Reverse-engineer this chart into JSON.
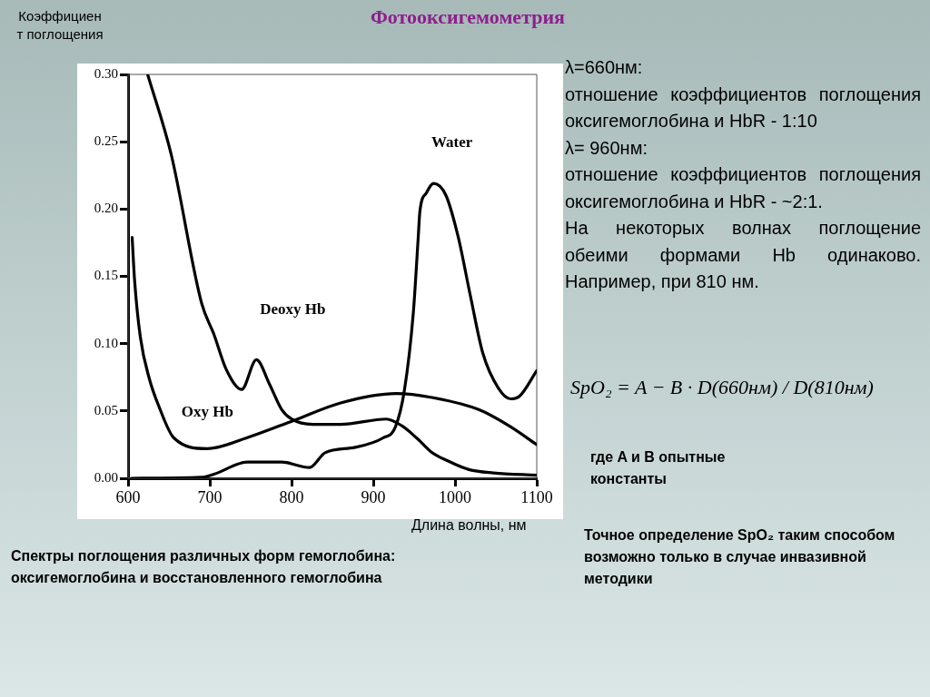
{
  "chart_data": {
    "type": "line",
    "title": "Фотооксигемометрия",
    "xlabel": "Длина волны, нм",
    "ylabel": "Коэффициент поглощения",
    "xlim": [
      600,
      1100
    ],
    "xticks": [
      600,
      700,
      800,
      900,
      1000,
      1100
    ],
    "ylim": [
      0,
      0.3
    ],
    "yticks": [
      {
        "value": 0,
        "label": "0.00"
      },
      {
        "value": 0.05,
        "label": "0.05"
      },
      {
        "value": 0.1,
        "label": "0.10"
      },
      {
        "value": 0.15,
        "label": "0.15"
      },
      {
        "value": 0.2,
        "label": "0.20"
      },
      {
        "value": 0.25,
        "label": "0.25"
      },
      {
        "value": 0.3,
        "label": "0.30"
      }
    ],
    "series": [
      {
        "name": "Deoxy Hb",
        "color": "#000000",
        "x": [
          624,
          653,
          690,
          705,
          720,
          739,
          757,
          773,
          788,
          800,
          826,
          860,
          916,
          935,
          953,
          972,
          991,
          1017,
          1047,
          1100
        ],
        "values": [
          0.3,
          0.24,
          0.13,
          0.107,
          0.081,
          0.066,
          0.088,
          0.07,
          0.051,
          0.044,
          0.04,
          0.04,
          0.044,
          0.039,
          0.03,
          0.019,
          0.013,
          0.0065,
          0.004,
          0.0023
        ]
      },
      {
        "name": "Oxy Hb",
        "color": "#000000",
        "x": [
          605,
          608,
          615,
          626,
          638,
          656,
          697,
          745,
          803,
          860,
          928,
          972,
          1029,
          1066,
          1100
        ],
        "values": [
          0.179,
          0.147,
          0.105,
          0.074,
          0.053,
          0.03,
          0.022,
          0.03,
          0.043,
          0.056,
          0.063,
          0.06,
          0.051,
          0.039,
          0.025
        ]
      },
      {
        "name": "Water",
        "color": "#000000",
        "x": [
          604,
          690,
          705,
          746,
          788,
          822,
          841,
          878,
          912,
          927,
          938,
          949,
          955,
          957,
          965,
          974,
          989,
          1004,
          1019,
          1034,
          1053,
          1068,
          1079,
          1100
        ],
        "values": [
          0,
          0.0007,
          0.003,
          0.012,
          0.012,
          0.008,
          0.019,
          0.023,
          0.03,
          0.038,
          0.065,
          0.123,
          0.179,
          0.198,
          0.212,
          0.219,
          0.21,
          0.179,
          0.135,
          0.093,
          0.067,
          0.059,
          0.061,
          0.08
        ]
      }
    ],
    "annotations": [
      "λ=660нм:",
      "отношение коэффициентов поглощения оксигемоглобина и HbR - 1:10",
      "λ= 960нм:",
      "отношение коэффициентов поглощения оксигемоглобина и HbR - ~2:1.",
      "На некоторых волнах поглощение обеими формами Hb одинаково. Например, при 810 нм.",
      "SpO₂ = A − B · D(660нм) / D(810нм)",
      "где A и B опытные константы",
      "Точное определение SpO₂ таким способом возможно только в случае инвазивной методики",
      "Спектры поглощения различных форм гемоглобина: оксигемоглобина и восстановленного гемоглобина"
    ]
  }
}
